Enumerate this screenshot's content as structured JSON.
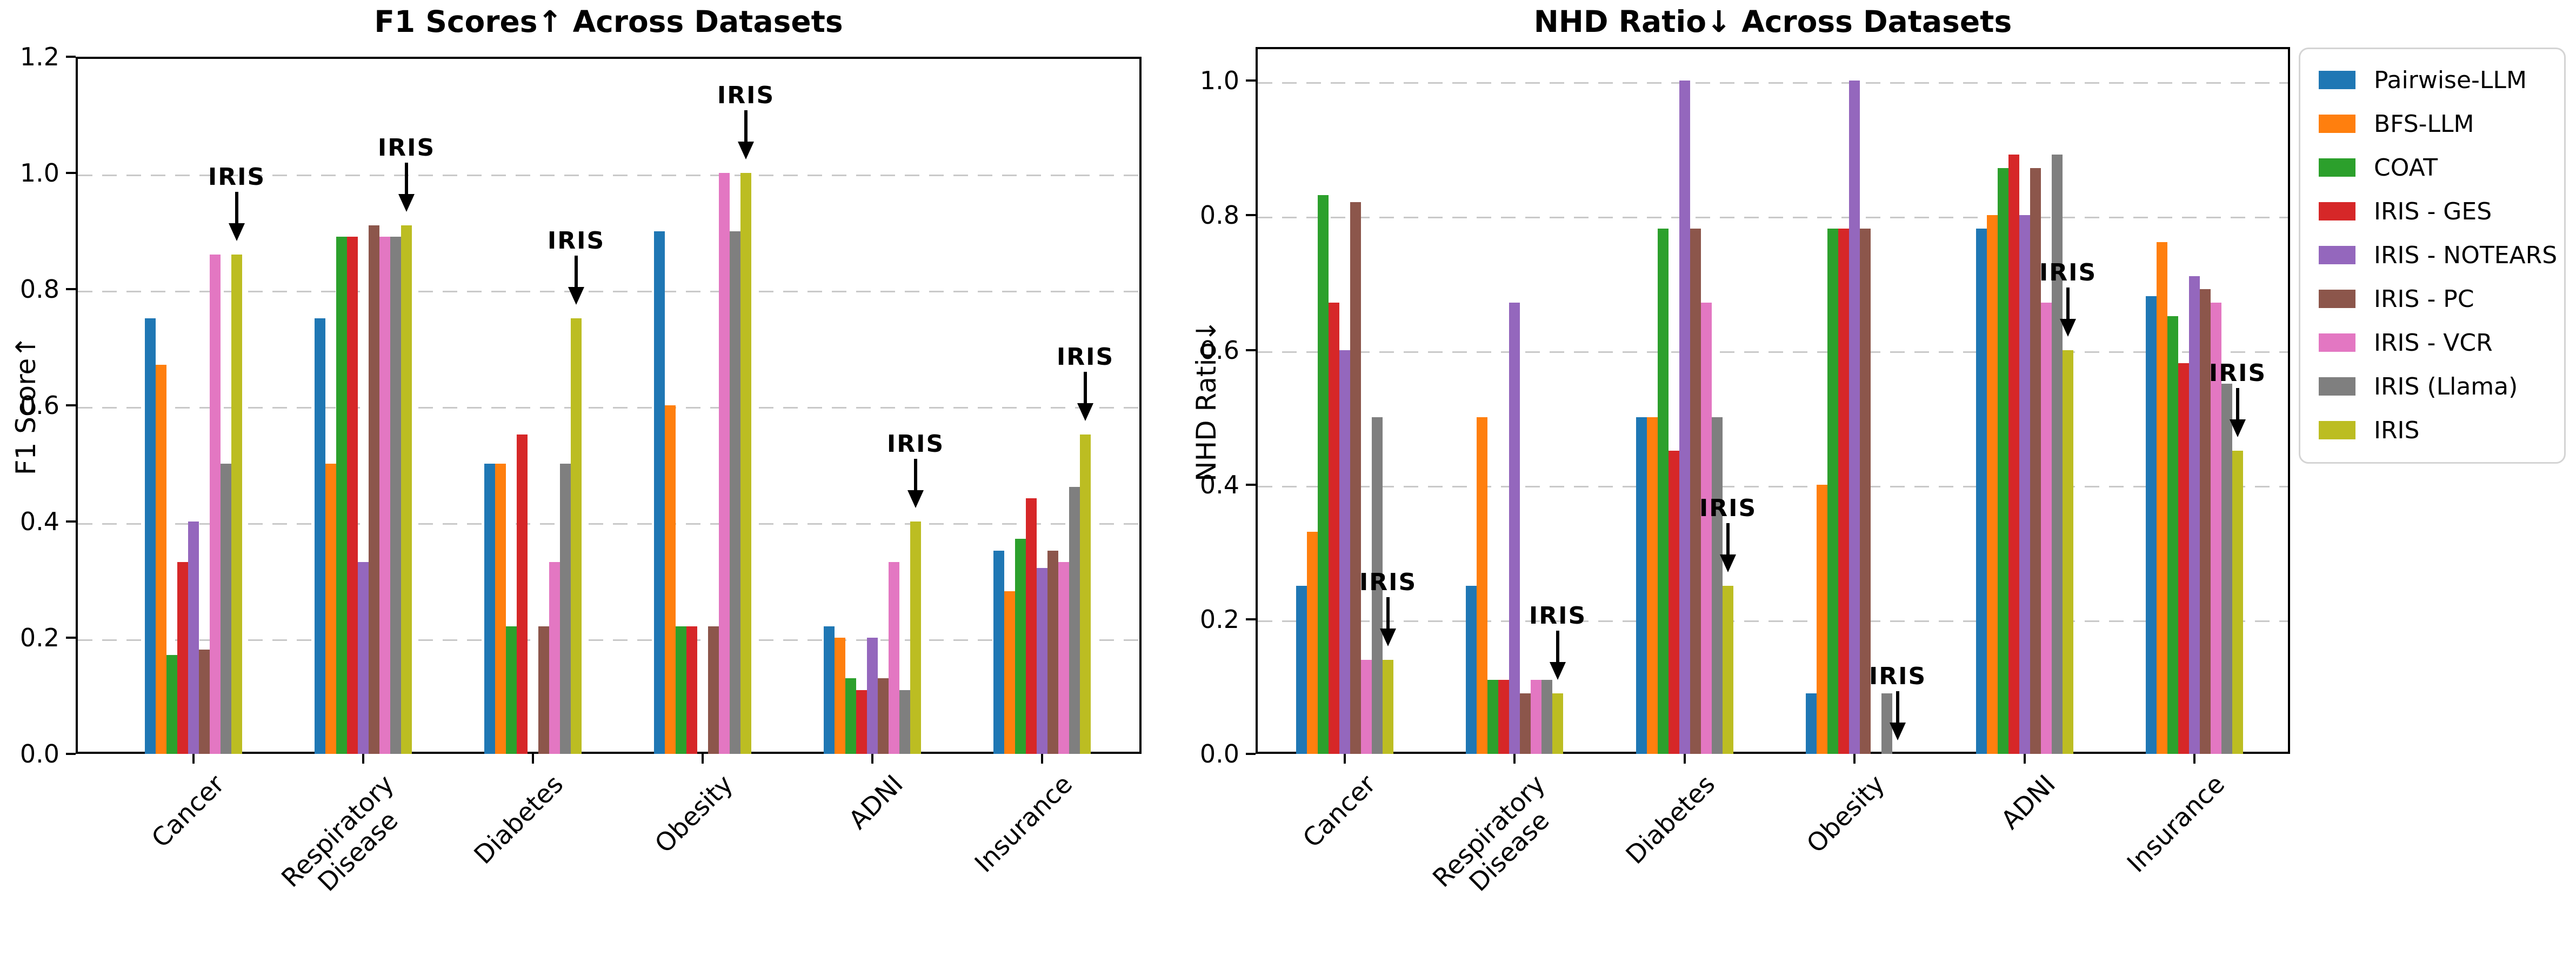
{
  "figure": {
    "background": "#ffffff",
    "left_title": "F1 Scores↑ Across Datasets",
    "right_title": "NHD Ratio↓ Across Datasets"
  },
  "legend": {
    "position": "outside-right",
    "items": [
      {
        "label": "Pairwise-LLM",
        "color": "#1f77b4"
      },
      {
        "label": "BFS-LLM",
        "color": "#ff7f0e"
      },
      {
        "label": "COAT",
        "color": "#2ca02c"
      },
      {
        "label": "IRIS - GES",
        "color": "#d62728"
      },
      {
        "label": "IRIS - NOTEARS",
        "color": "#9467bd"
      },
      {
        "label": "IRIS - PC",
        "color": "#8c564b"
      },
      {
        "label": "IRIS - VCR",
        "color": "#e377c2"
      },
      {
        "label": "IRIS (Llama)",
        "color": "#7f7f7f"
      },
      {
        "label": "IRIS",
        "color": "#bcbd22"
      }
    ]
  },
  "chart_data": [
    {
      "type": "bar",
      "title": "F1 Scores↑ Across Datasets",
      "xlabel": "",
      "ylabel": "F1 Score↑",
      "ylim": [
        0,
        1.2
      ],
      "yticks": [
        "0.0",
        "0.2",
        "0.4",
        "0.6",
        "0.8",
        "1.0",
        "1.2"
      ],
      "grid": "horizontal dashed gray at 0.2 intervals",
      "legend_position": "shared figure legend, outside right",
      "categories": [
        "Cancer",
        "Respiratory\nDisease",
        "Diabetes",
        "Obesity",
        "ADNI",
        "Insurance"
      ],
      "series": [
        {
          "name": "Pairwise-LLM",
          "color": "#1f77b4",
          "values": [
            0.75,
            0.75,
            0.5,
            0.9,
            0.22,
            0.35
          ]
        },
        {
          "name": "BFS-LLM",
          "color": "#ff7f0e",
          "values": [
            0.67,
            0.5,
            0.5,
            0.6,
            0.2,
            0.28
          ]
        },
        {
          "name": "COAT",
          "color": "#2ca02c",
          "values": [
            0.17,
            0.89,
            0.22,
            0.22,
            0.13,
            0.37
          ]
        },
        {
          "name": "IRIS - GES",
          "color": "#d62728",
          "values": [
            0.33,
            0.89,
            0.55,
            0.22,
            0.11,
            0.44
          ]
        },
        {
          "name": "IRIS - NOTEARS",
          "color": "#9467bd",
          "values": [
            0.4,
            0.33,
            0.0,
            0.0,
            0.2,
            0.32
          ]
        },
        {
          "name": "IRIS - PC",
          "color": "#8c564b",
          "values": [
            0.18,
            0.91,
            0.22,
            0.22,
            0.13,
            0.35
          ]
        },
        {
          "name": "IRIS - VCR",
          "color": "#e377c2",
          "values": [
            0.86,
            0.89,
            0.33,
            1.0,
            0.33,
            0.33
          ]
        },
        {
          "name": "IRIS (Llama)",
          "color": "#7f7f7f",
          "values": [
            0.5,
            0.89,
            0.5,
            0.9,
            0.11,
            0.46
          ]
        },
        {
          "name": "IRIS",
          "color": "#bcbd22",
          "values": [
            0.86,
            0.91,
            0.75,
            1.0,
            0.4,
            0.55
          ]
        }
      ],
      "annotations": [
        {
          "text": "IRIS",
          "category": "Cancer",
          "points_to_value": 0.86
        },
        {
          "text": "IRIS",
          "category": "Respiratory Disease",
          "points_to_value": 0.91
        },
        {
          "text": "IRIS",
          "category": "Diabetes",
          "points_to_value": 0.75
        },
        {
          "text": "IRIS",
          "category": "Obesity",
          "points_to_value": 1.0
        },
        {
          "text": "IRIS",
          "category": "ADNI",
          "points_to_value": 0.4
        },
        {
          "text": "IRIS",
          "category": "Insurance",
          "points_to_value": 0.55
        }
      ]
    },
    {
      "type": "bar",
      "title": "NHD Ratio↓ Across Datasets",
      "xlabel": "",
      "ylabel": "NHD Ratio↓",
      "ylim": [
        0,
        1.05
      ],
      "yticks": [
        "0.0",
        "0.2",
        "0.4",
        "0.6",
        "0.8",
        "1.0"
      ],
      "grid": "horizontal dashed gray at 0.2 intervals",
      "legend_position": "shared figure legend, outside right",
      "categories": [
        "Cancer",
        "Respiratory\nDisease",
        "Diabetes",
        "Obesity",
        "ADNI",
        "Insurance"
      ],
      "series": [
        {
          "name": "Pairwise-LLM",
          "color": "#1f77b4",
          "values": [
            0.25,
            0.25,
            0.5,
            0.09,
            0.78,
            0.68
          ]
        },
        {
          "name": "BFS-LLM",
          "color": "#ff7f0e",
          "values": [
            0.33,
            0.5,
            0.5,
            0.4,
            0.8,
            0.76
          ]
        },
        {
          "name": "COAT",
          "color": "#2ca02c",
          "values": [
            0.83,
            0.11,
            0.78,
            0.78,
            0.87,
            0.65
          ]
        },
        {
          "name": "IRIS - GES",
          "color": "#d62728",
          "values": [
            0.67,
            0.11,
            0.45,
            0.78,
            0.89,
            0.58
          ]
        },
        {
          "name": "IRIS - NOTEARS",
          "color": "#9467bd",
          "values": [
            0.6,
            0.67,
            1.0,
            1.0,
            0.8,
            0.71
          ]
        },
        {
          "name": "IRIS - PC",
          "color": "#8c564b",
          "values": [
            0.82,
            0.09,
            0.78,
            0.78,
            0.87,
            0.69
          ]
        },
        {
          "name": "IRIS - VCR",
          "color": "#e377c2",
          "values": [
            0.14,
            0.11,
            0.67,
            0.0,
            0.67,
            0.67
          ]
        },
        {
          "name": "IRIS (Llama)",
          "color": "#7f7f7f",
          "values": [
            0.5,
            0.11,
            0.5,
            0.09,
            0.89,
            0.55
          ]
        },
        {
          "name": "IRIS",
          "color": "#bcbd22",
          "values": [
            0.14,
            0.09,
            0.25,
            0.0,
            0.6,
            0.45
          ]
        }
      ],
      "annotations": [
        {
          "text": "IRIS",
          "category": "Cancer",
          "points_to_value": 0.14
        },
        {
          "text": "IRIS",
          "category": "Respiratory Disease",
          "points_to_value": 0.09
        },
        {
          "text": "IRIS",
          "category": "Diabetes",
          "points_to_value": 0.25
        },
        {
          "text": "IRIS",
          "category": "Obesity",
          "points_to_value": 0.0
        },
        {
          "text": "IRIS",
          "category": "ADNI",
          "points_to_value": 0.6
        },
        {
          "text": "IRIS",
          "category": "Insurance",
          "points_to_value": 0.45
        }
      ]
    }
  ]
}
